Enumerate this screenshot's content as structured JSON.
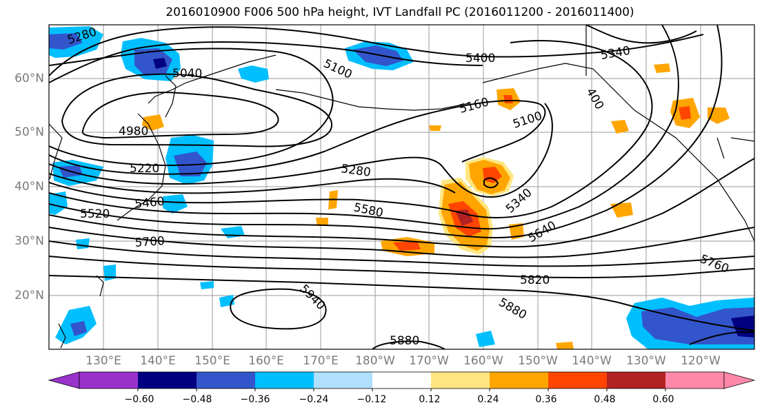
{
  "title": "2016010900 F006 500 hPa height, IVT Landfall PC (2016011200 - 2016011400)",
  "lat_labels": [
    "60°N",
    "50°N",
    "40°N",
    "30°N",
    "20°N"
  ],
  "lon_labels": [
    "130°E",
    "140°E",
    "150°E",
    "160°E",
    "170°E",
    "180°W",
    "170°W",
    "160°W",
    "150°W",
    "140°W",
    "130°W",
    "120°W"
  ],
  "contour_labels": [
    "5280",
    "5040",
    "5100",
    "5400",
    "5340",
    "400",
    "5160",
    "5100",
    "4980",
    "5220",
    "5280",
    "5460",
    "5580",
    "5340",
    "5520",
    "5640",
    "5700",
    "5760",
    "5820",
    "5940",
    "5880",
    "5880"
  ],
  "colorbar": {
    "ticks": [
      "−0.60",
      "−0.48",
      "−0.36",
      "−0.24",
      "−0.12",
      "0.12",
      "0.24",
      "0.36",
      "0.48",
      "0.60"
    ],
    "colors": [
      "#9933cc",
      "#000080",
      "#3355cc",
      "#00bfff",
      "#b0e0ff",
      "#ffffff",
      "#ffe680",
      "#ffa500",
      "#ff4500",
      "#b22222",
      "#ff88aa",
      "#ff88aa"
    ]
  }
}
